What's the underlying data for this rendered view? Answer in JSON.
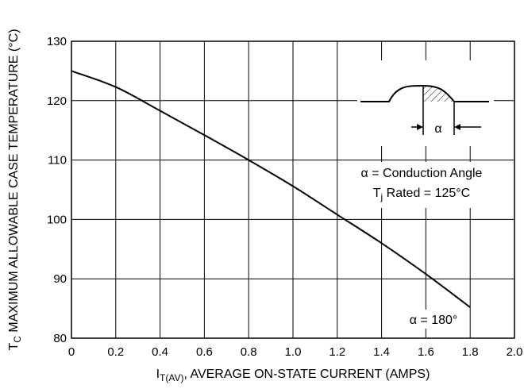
{
  "chart_data": {
    "type": "line",
    "xlabel": "I",
    "xlabel_sub": "T(AV)",
    "xlabel_rest": ", AVERAGE ON-STATE CURRENT (AMPS)",
    "ylabel": "T",
    "ylabel_sub": "C",
    "ylabel_rest": " MAXIMUM ALLOWABLE CASE TEMPERATURE (°C)",
    "xlim": [
      0,
      2.0
    ],
    "ylim": [
      80,
      130
    ],
    "xticks": [
      "0",
      "0.2",
      "0.4",
      "0.6",
      "0.8",
      "1.0",
      "1.2",
      "1.4",
      "1.6",
      "1.8",
      "2.0"
    ],
    "yticks": [
      "80",
      "90",
      "100",
      "110",
      "120",
      "130"
    ],
    "grid": true,
    "series": [
      {
        "name": "α = 180°",
        "x": [
          0,
          0.2,
          0.4,
          0.6,
          0.8,
          1.0,
          1.2,
          1.4,
          1.6,
          1.8
        ],
        "y": [
          125,
          122.3,
          118.3,
          114.2,
          110.0,
          105.6,
          100.8,
          96.0,
          90.8,
          85.2
        ]
      }
    ],
    "annotations": {
      "alpha_symbol": "α",
      "conduction": "α = Conduction Angle",
      "tj_label": "T",
      "tj_sub": "j",
      "tj_rest": " Rated = 125°C"
    }
  }
}
